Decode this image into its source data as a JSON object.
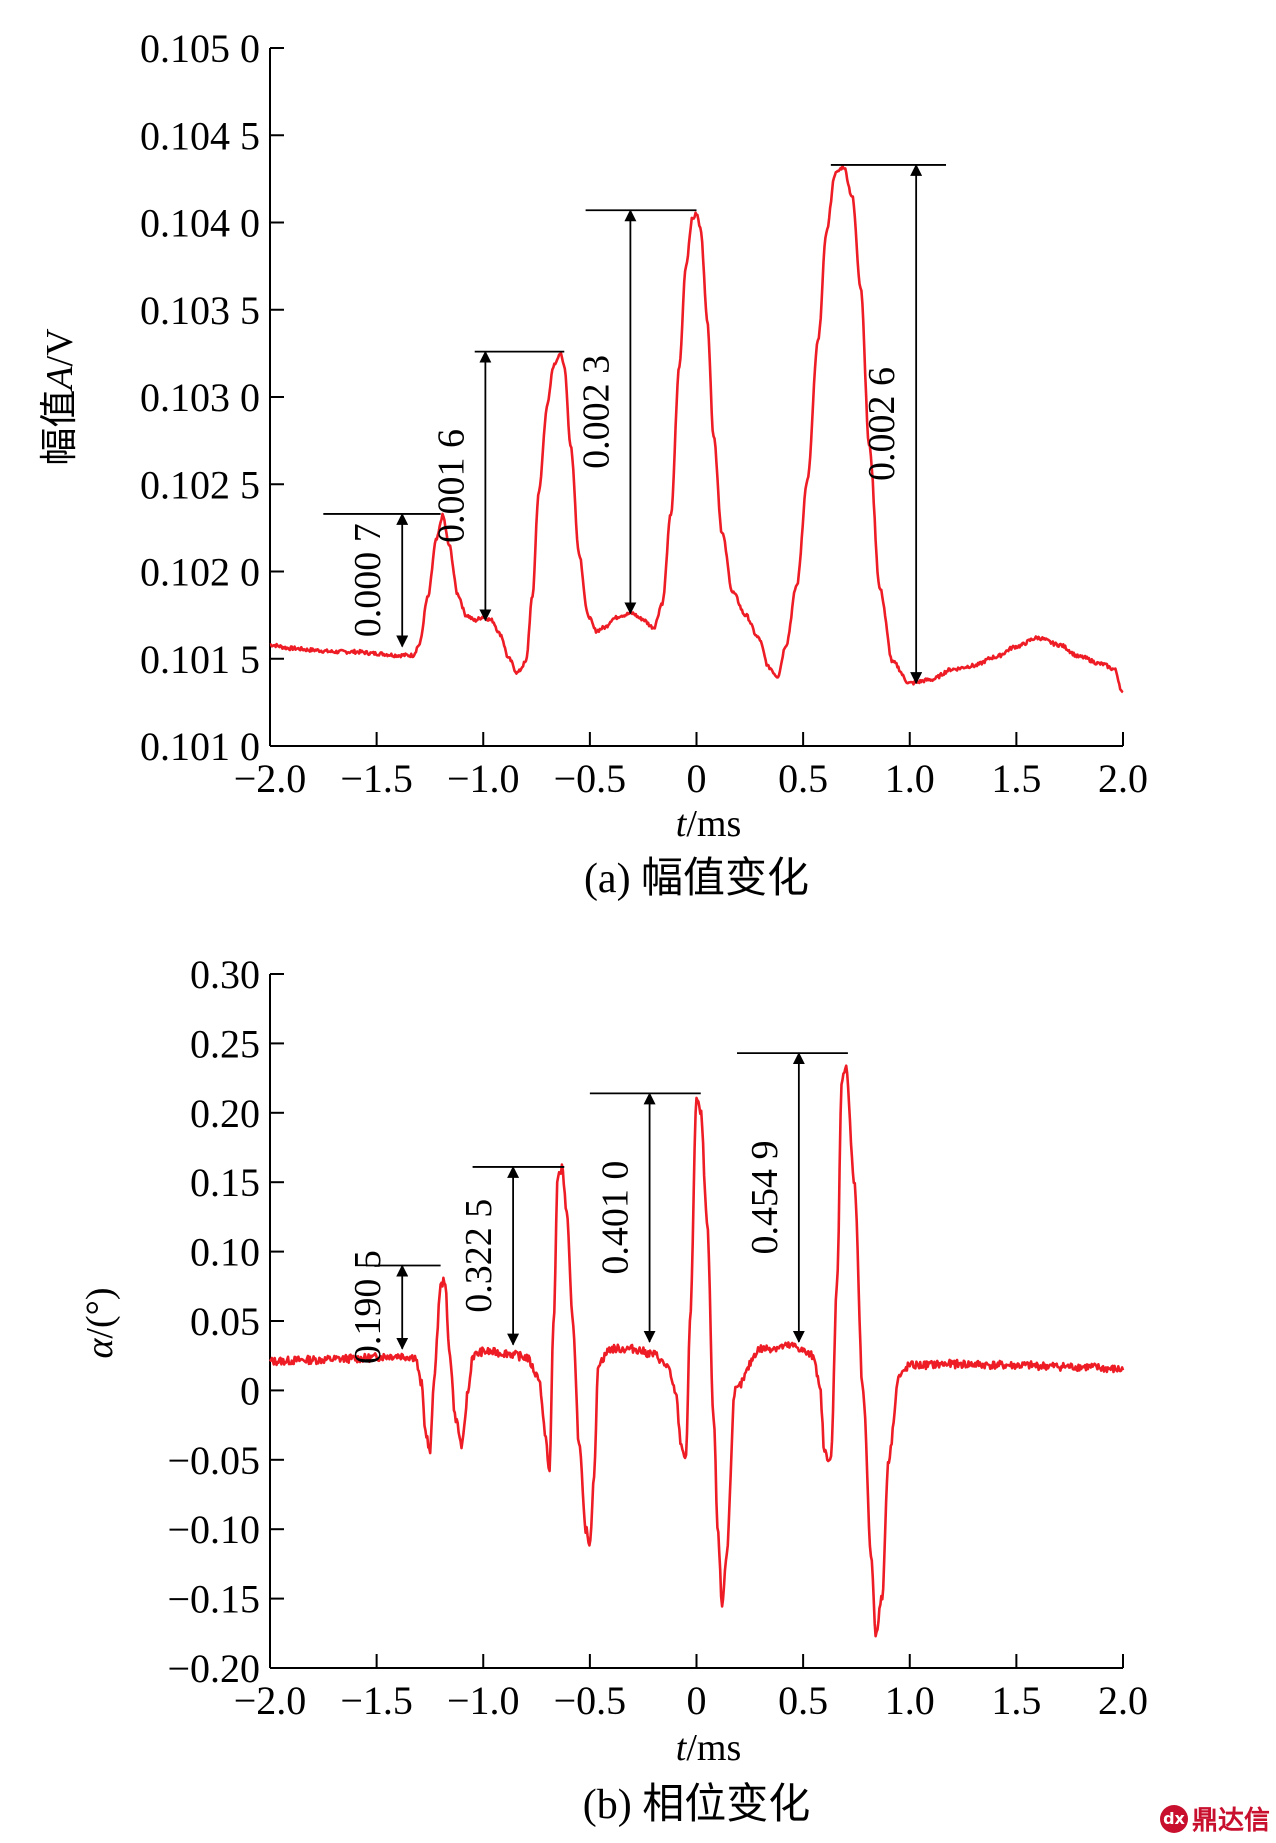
{
  "chart_data": [
    {
      "type": "line",
      "caption": "(a) 幅值变化",
      "xlabel_italic": "t",
      "xlabel_rest": "/ms",
      "ylabel_prefix": "幅值",
      "ylabel_italic": "A",
      "ylabel_rest": "/V",
      "xlim": [
        -2.0,
        2.0
      ],
      "ylim": [
        0.101,
        0.105
      ],
      "x_ticks": [
        -2.0,
        -1.5,
        -1.0,
        -0.5,
        0,
        0.5,
        1.0,
        1.5,
        2.0
      ],
      "x_tick_labels": [
        "−2.0",
        "−1.5",
        "−1.0",
        "−0.5",
        "0",
        "0.5",
        "1.0",
        "1.5",
        "2.0"
      ],
      "y_ticks": [
        0.101,
        0.1015,
        0.102,
        0.1025,
        0.103,
        0.1035,
        0.104,
        0.1045,
        0.105
      ],
      "y_tick_labels": [
        "0.101 0",
        "0.101 5",
        "0.102 0",
        "0.102 5",
        "0.103 0",
        "0.103 5",
        "0.104 0",
        "0.104 5",
        "0.105 0"
      ],
      "grid": false,
      "line_color": "#ee1c25",
      "series": [
        {
          "x": [
            -2.0,
            -1.9,
            -1.8,
            -1.7,
            -1.6,
            -1.5,
            -1.4,
            -1.33,
            -1.3,
            -1.26,
            -1.22,
            -1.19,
            -1.16,
            -1.12,
            -1.08,
            -1.04,
            -1.0,
            -0.96,
            -0.92,
            -0.88,
            -0.84,
            -0.8,
            -0.77,
            -0.74,
            -0.7,
            -0.67,
            -0.64,
            -0.62,
            -0.59,
            -0.55,
            -0.51,
            -0.47,
            -0.43,
            -0.39,
            -0.35,
            -0.3,
            -0.26,
            -0.2,
            -0.16,
            -0.12,
            -0.08,
            -0.05,
            -0.02,
            0.0,
            0.02,
            0.05,
            0.08,
            0.12,
            0.17,
            0.23,
            0.29,
            0.34,
            0.38,
            0.42,
            0.47,
            0.52,
            0.57,
            0.61,
            0.65,
            0.69,
            0.73,
            0.77,
            0.81,
            0.86,
            0.92,
            1.0,
            1.1,
            1.2,
            1.3,
            1.4,
            1.5,
            1.6,
            1.7,
            1.8,
            1.9,
            1.96,
            2.0
          ],
          "y": [
            0.10158,
            0.10156,
            0.10155,
            0.10154,
            0.10154,
            0.10153,
            0.10152,
            0.10152,
            0.10158,
            0.10185,
            0.10218,
            0.10232,
            0.10215,
            0.10187,
            0.10175,
            0.10172,
            0.10174,
            0.10172,
            0.10164,
            0.1015,
            0.10142,
            0.10148,
            0.10185,
            0.10245,
            0.10295,
            0.10318,
            0.10325,
            0.10318,
            0.10272,
            0.1021,
            0.10175,
            0.10166,
            0.10168,
            0.10173,
            0.10175,
            0.10176,
            0.10173,
            0.10168,
            0.10182,
            0.10233,
            0.10318,
            0.10375,
            0.10402,
            0.10405,
            0.10396,
            0.10345,
            0.10278,
            0.10222,
            0.10188,
            0.10175,
            0.10162,
            0.10145,
            0.1014,
            0.10158,
            0.10192,
            0.10252,
            0.10332,
            0.10395,
            0.10428,
            0.10432,
            0.10415,
            0.10363,
            0.10272,
            0.1019,
            0.10148,
            0.10136,
            0.10138,
            0.10144,
            0.10146,
            0.10151,
            0.10157,
            0.10162,
            0.10158,
            0.10151,
            0.10147,
            0.10144,
            0.1013
          ]
        }
      ],
      "annotations": [
        {
          "label": "0.000 7",
          "x_arrow": -1.38,
          "x_left": -1.75,
          "x_right": -1.2,
          "y_top": 0.10233,
          "y_bottom": 0.10157
        },
        {
          "label": "0.001 6",
          "x_arrow": -0.99,
          "x_left": -1.04,
          "x_right": -0.62,
          "y_top": 0.10326,
          "y_bottom": 0.10172
        },
        {
          "label": "0.002 3",
          "x_arrow": -0.31,
          "x_left": -0.52,
          "x_right": 0.0,
          "y_top": 0.10407,
          "y_bottom": 0.10176
        },
        {
          "label": "0.002 6",
          "x_arrow": 1.03,
          "x_left": 0.63,
          "x_right": 1.17,
          "y_top": 0.10433,
          "y_bottom": 0.10136
        }
      ]
    },
    {
      "type": "line",
      "caption": "(b) 相位变化",
      "xlabel_italic": "t",
      "xlabel_rest": "/ms",
      "ylabel_prefix": "",
      "ylabel_italic": "α",
      "ylabel_rest": "/(°)",
      "xlim": [
        -2.0,
        2.0
      ],
      "ylim": [
        -0.2,
        0.3
      ],
      "x_ticks": [
        -2.0,
        -1.5,
        -1.0,
        -0.5,
        0,
        0.5,
        1.0,
        1.5,
        2.0
      ],
      "x_tick_labels": [
        "−2.0",
        "−1.5",
        "−1.0",
        "−0.5",
        "0",
        "0.5",
        "1.0",
        "1.5",
        "2.0"
      ],
      "y_ticks": [
        -0.2,
        -0.15,
        -0.1,
        -0.05,
        0,
        0.05,
        0.1,
        0.15,
        0.2,
        0.25,
        0.3
      ],
      "y_tick_labels": [
        "−0.20",
        "−0.15",
        "−0.10",
        "−0.05",
        "0",
        "0.05",
        "0.10",
        "0.15",
        "0.20",
        "0.25",
        "0.30"
      ],
      "grid": false,
      "line_color": "#ee1c25",
      "series": [
        {
          "x": [
            -2.0,
            -1.8,
            -1.6,
            -1.4,
            -1.32,
            -1.29,
            -1.27,
            -1.25,
            -1.23,
            -1.2,
            -1.18,
            -1.16,
            -1.13,
            -1.1,
            -1.07,
            -1.05,
            -1.0,
            -0.9,
            -0.8,
            -0.74,
            -0.71,
            -0.69,
            -0.67,
            -0.65,
            -0.63,
            -0.61,
            -0.58,
            -0.55,
            -0.52,
            -0.5,
            -0.48,
            -0.46,
            -0.4,
            -0.3,
            -0.2,
            -0.14,
            -0.1,
            -0.07,
            -0.05,
            -0.03,
            0.0,
            0.02,
            0.05,
            0.08,
            0.1,
            0.12,
            0.14,
            0.18,
            0.3,
            0.45,
            0.55,
            0.58,
            0.6,
            0.63,
            0.66,
            0.68,
            0.7,
            0.74,
            0.78,
            0.82,
            0.84,
            0.87,
            0.9,
            0.95,
            1.0,
            1.2,
            1.5,
            1.8,
            2.0
          ],
          "y": [
            0.021,
            0.022,
            0.023,
            0.025,
            0.024,
            0.005,
            -0.03,
            -0.045,
            0.01,
            0.075,
            0.08,
            0.03,
            -0.02,
            -0.04,
            0.0,
            0.025,
            0.028,
            0.027,
            0.024,
            0.01,
            -0.03,
            -0.06,
            0.05,
            0.155,
            0.16,
            0.13,
            0.05,
            -0.04,
            -0.1,
            -0.11,
            -0.06,
            0.02,
            0.03,
            0.03,
            0.026,
            0.018,
            0.0,
            -0.04,
            -0.05,
            0.05,
            0.21,
            0.2,
            0.12,
            -0.02,
            -0.1,
            -0.155,
            -0.12,
            0.0,
            0.03,
            0.032,
            0.025,
            0.0,
            -0.045,
            -0.05,
            0.08,
            0.22,
            0.235,
            0.15,
            0.0,
            -0.12,
            -0.175,
            -0.15,
            -0.05,
            0.01,
            0.018,
            0.019,
            0.018,
            0.017,
            0.015
          ]
        }
      ],
      "annotations": [
        {
          "label": "0.190 5",
          "x_arrow": -1.38,
          "x_left": -1.55,
          "x_right": -1.2,
          "y_top": 0.09,
          "y_bottom": 0.03
        },
        {
          "label": "0.322 5",
          "x_arrow": -0.86,
          "x_left": -1.05,
          "x_right": -0.62,
          "y_top": 0.161,
          "y_bottom": 0.033
        },
        {
          "label": "0.401 0",
          "x_arrow": -0.22,
          "x_left": -0.5,
          "x_right": 0.02,
          "y_top": 0.214,
          "y_bottom": 0.035
        },
        {
          "label": "0.454 9",
          "x_arrow": 0.48,
          "x_left": 0.19,
          "x_right": 0.71,
          "y_top": 0.243,
          "y_bottom": 0.035
        }
      ]
    }
  ],
  "watermark": {
    "text": "鼎达信",
    "mark": "dx"
  }
}
